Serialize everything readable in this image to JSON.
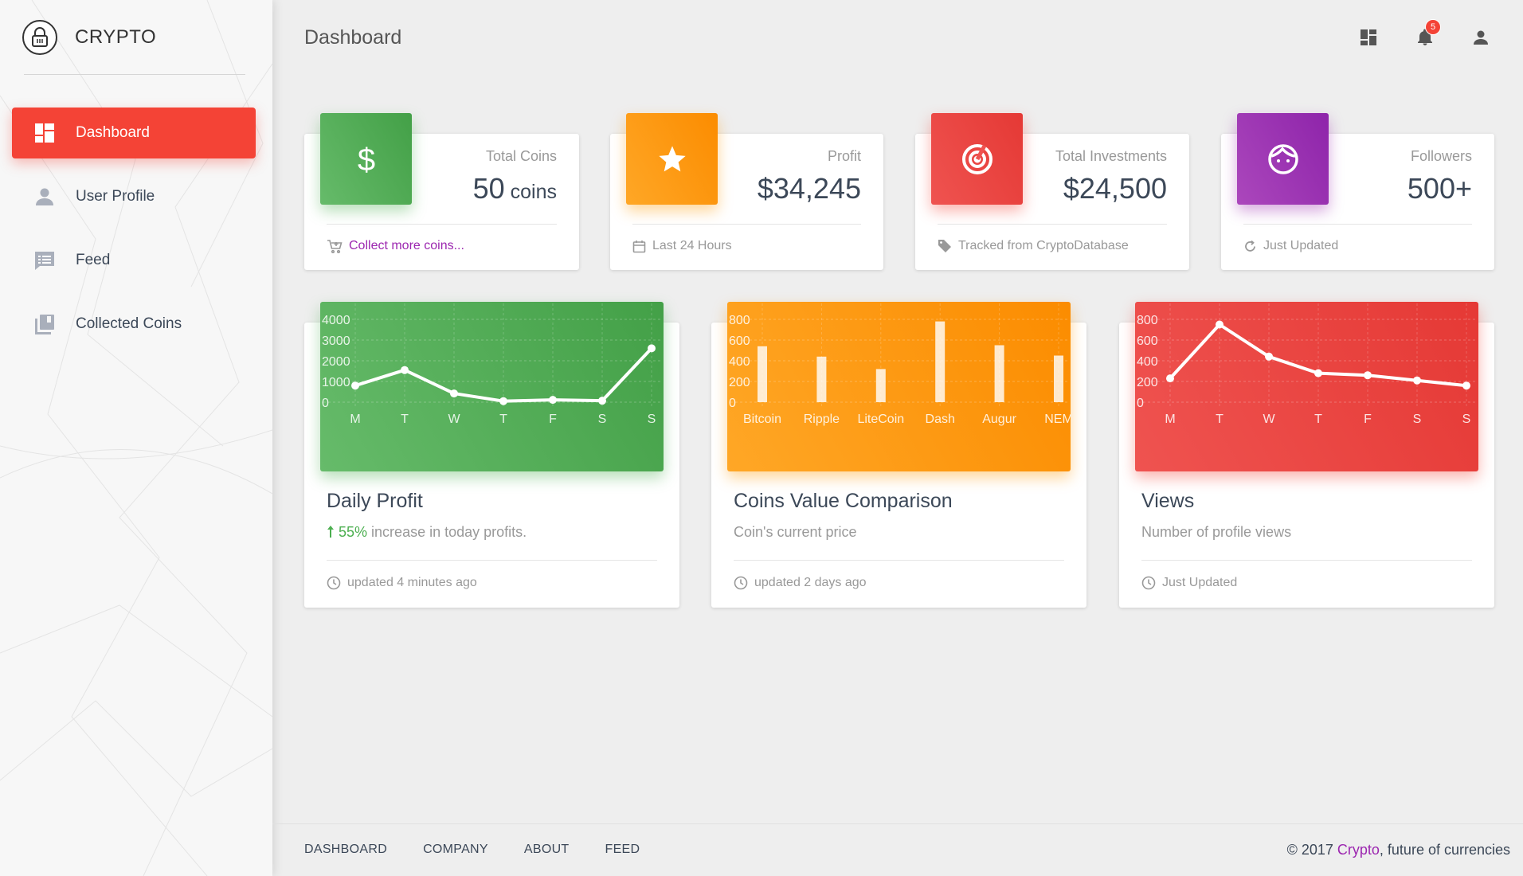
{
  "app": {
    "name": "CRYPTO"
  },
  "sidebar": {
    "items": [
      {
        "label": "Dashboard",
        "icon": "dashboard-icon",
        "active": true
      },
      {
        "label": "User Profile",
        "icon": "person-icon",
        "active": false
      },
      {
        "label": "Feed",
        "icon": "feed-icon",
        "active": false
      },
      {
        "label": "Collected Coins",
        "icon": "library-icon",
        "active": false
      }
    ]
  },
  "header": {
    "title": "Dashboard",
    "notification_count": "5"
  },
  "stats": [
    {
      "category": "Total Coins",
      "value": "50",
      "unit": " coins",
      "footer": "Collect more coins...",
      "color": "#4caf50",
      "icon": "dollar-icon",
      "footer_icon": "cart-icon"
    },
    {
      "category": "Profit",
      "value": "$34,245",
      "footer": "Last 24 Hours",
      "color": "#ff9800",
      "icon": "star-icon",
      "footer_icon": "calendar-icon"
    },
    {
      "category": "Total Investments",
      "value": "$24,500",
      "footer": "Tracked from CryptoDatabase",
      "color": "#f44336",
      "icon": "target-icon",
      "footer_icon": "tag-icon"
    },
    {
      "category": "Followers",
      "value": "500+",
      "footer": "Just Updated",
      "color": "#9c27b0",
      "icon": "face-icon",
      "footer_icon": "refresh-icon"
    }
  ],
  "charts": [
    {
      "title": "Daily Profit",
      "subtitle_highlight": "55%",
      "subtitle": " increase in today profits.",
      "footer": "updated 4 minutes ago",
      "colors": [
        "#66bb6a",
        "#43a047"
      ]
    },
    {
      "title": "Coins Value Comparison",
      "subtitle": "Coin's current price",
      "footer": "updated 2 days ago",
      "colors": [
        "#ffa726",
        "#fb8c00"
      ]
    },
    {
      "title": "Views",
      "subtitle": "Number of profile views",
      "footer": "Just Updated",
      "colors": [
        "#ef5350",
        "#e53935"
      ]
    }
  ],
  "chart_data": [
    {
      "type": "line",
      "categories": [
        "M",
        "T",
        "W",
        "T",
        "F",
        "S",
        "S"
      ],
      "values": [
        800,
        1550,
        420,
        50,
        110,
        70,
        2600
      ],
      "yticks": [
        0,
        1000,
        2000,
        3000,
        4000
      ],
      "ylim": [
        0,
        4000
      ]
    },
    {
      "type": "bar",
      "categories": [
        "Bitcoin",
        "Ripple",
        "LiteCoin",
        "Dash",
        "Augur",
        "NEM"
      ],
      "values": [
        540,
        440,
        320,
        780,
        550,
        450
      ],
      "yticks": [
        0,
        200,
        400,
        600,
        800
      ],
      "ylim": [
        0,
        800
      ]
    },
    {
      "type": "line",
      "categories": [
        "M",
        "T",
        "W",
        "T",
        "F",
        "S",
        "S"
      ],
      "values": [
        230,
        750,
        440,
        280,
        260,
        210,
        160
      ],
      "yticks": [
        0,
        200,
        400,
        600,
        800
      ],
      "ylim": [
        0,
        800
      ]
    }
  ],
  "footer": {
    "links": [
      "DASHBOARD",
      "COMPANY",
      "ABOUT",
      "FEED"
    ],
    "copyright_prefix": "© 2017 ",
    "copyright_brand": "Crypto",
    "copyright_suffix": ", future of currencies"
  }
}
